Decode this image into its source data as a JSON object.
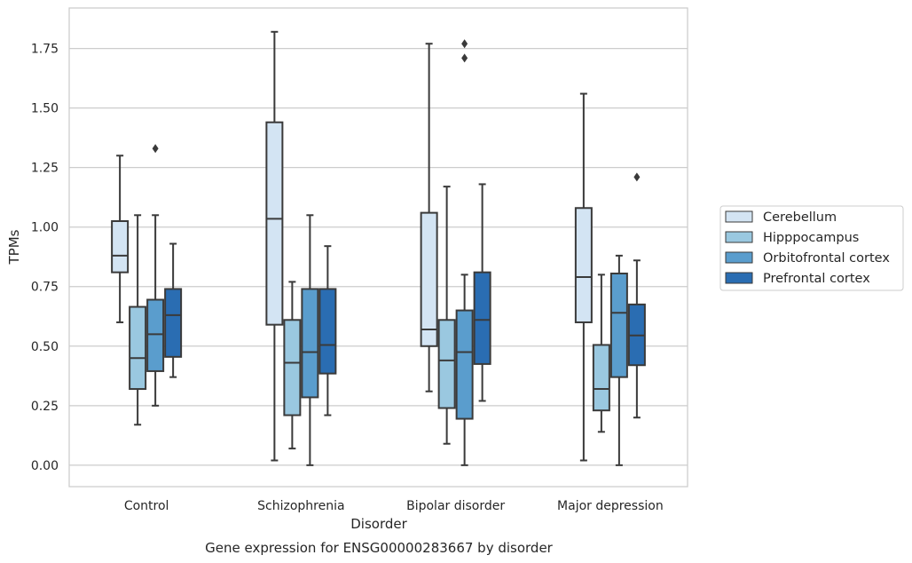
{
  "chart_data": {
    "type": "boxplot",
    "xlabel": "Disorder",
    "ylabel": "TPMs",
    "caption": "Gene expression for ENSG00000283667 by disorder",
    "ylim": [
      -0.09,
      1.92
    ],
    "yticks": [
      0.0,
      0.25,
      0.5,
      0.75,
      1.0,
      1.25,
      1.5,
      1.75
    ],
    "ytick_labels": [
      "0.00",
      "0.25",
      "0.50",
      "0.75",
      "1.00",
      "1.25",
      "1.50",
      "1.75"
    ],
    "grid": "horizontal",
    "legend_position": "right, outside",
    "categories": [
      "Control",
      "Schizophrenia",
      "Bipolar disorder",
      "Major depression"
    ],
    "series": [
      {
        "name": "Cerebellum",
        "color": "#d3e4f3",
        "boxes": [
          {
            "whislo": 0.6,
            "q1": 0.81,
            "med": 0.88,
            "q3": 1.025,
            "whishi": 1.3,
            "fliers": []
          },
          {
            "whislo": 0.02,
            "q1": 0.59,
            "med": 1.035,
            "q3": 1.44,
            "whishi": 1.82,
            "fliers": []
          },
          {
            "whislo": 0.31,
            "q1": 0.5,
            "med": 0.57,
            "q3": 1.06,
            "whishi": 1.77,
            "fliers": []
          },
          {
            "whislo": 0.02,
            "q1": 0.6,
            "med": 0.79,
            "q3": 1.08,
            "whishi": 1.56,
            "fliers": []
          }
        ]
      },
      {
        "name": "Hipppocampus",
        "color": "#9ac8e0",
        "boxes": [
          {
            "whislo": 0.17,
            "q1": 0.32,
            "med": 0.45,
            "q3": 0.665,
            "whishi": 1.05,
            "fliers": []
          },
          {
            "whislo": 0.07,
            "q1": 0.21,
            "med": 0.43,
            "q3": 0.61,
            "whishi": 0.77,
            "fliers": []
          },
          {
            "whislo": 0.09,
            "q1": 0.24,
            "med": 0.44,
            "q3": 0.61,
            "whishi": 1.17,
            "fliers": []
          },
          {
            "whislo": 0.14,
            "q1": 0.23,
            "med": 0.32,
            "q3": 0.505,
            "whishi": 0.8,
            "fliers": []
          }
        ]
      },
      {
        "name": "Orbitofrontal cortex",
        "color": "#5a9dcd",
        "boxes": [
          {
            "whislo": 0.25,
            "q1": 0.395,
            "med": 0.55,
            "q3": 0.695,
            "whishi": 1.05,
            "fliers": [
              1.33
            ]
          },
          {
            "whislo": 0.0,
            "q1": 0.285,
            "med": 0.475,
            "q3": 0.74,
            "whishi": 1.05,
            "fliers": []
          },
          {
            "whislo": 0.0,
            "q1": 0.195,
            "med": 0.475,
            "q3": 0.65,
            "whishi": 0.8,
            "fliers": [
              1.77,
              1.71
            ]
          },
          {
            "whislo": 0.0,
            "q1": 0.37,
            "med": 0.64,
            "q3": 0.805,
            "whishi": 0.88,
            "fliers": []
          }
        ]
      },
      {
        "name": "Prefrontal cortex",
        "color": "#2a6db2",
        "boxes": [
          {
            "whislo": 0.37,
            "q1": 0.455,
            "med": 0.63,
            "q3": 0.74,
            "whishi": 0.93,
            "fliers": []
          },
          {
            "whislo": 0.21,
            "q1": 0.385,
            "med": 0.505,
            "q3": 0.74,
            "whishi": 0.92,
            "fliers": []
          },
          {
            "whislo": 0.27,
            "q1": 0.425,
            "med": 0.61,
            "q3": 0.81,
            "whishi": 1.18,
            "fliers": []
          },
          {
            "whislo": 0.2,
            "q1": 0.42,
            "med": 0.545,
            "q3": 0.675,
            "whishi": 0.86,
            "fliers": [
              1.21
            ]
          }
        ]
      }
    ]
  }
}
